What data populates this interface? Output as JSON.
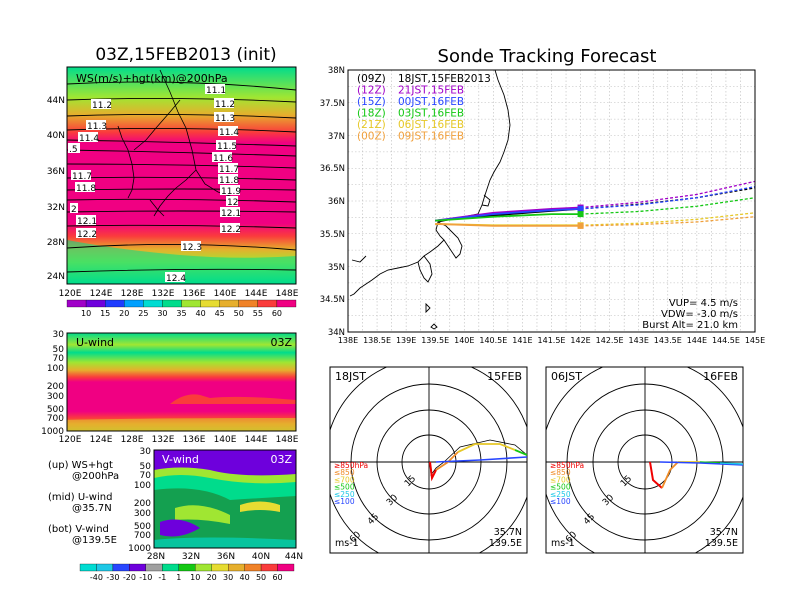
{
  "left_title": "03Z,15FEB2013 (init)",
  "right_title": "Sonde Tracking Forecast",
  "ws_panel": {
    "label": "WS(m/s)+hgt(km)@200hPa",
    "lat_ticks": [
      "44N",
      "40N",
      "36N",
      "32N",
      "28N",
      "24N"
    ],
    "lon_ticks": [
      "120E",
      "124E",
      "128E",
      "132E",
      "136E",
      "140E",
      "144E",
      "148E"
    ],
    "contour_labels": [
      "11.1",
      "11.2",
      "11.2",
      "11.3",
      "11.3",
      "11.4",
      "11.4",
      ".5",
      "11.5",
      "11.6",
      "11.7",
      "11.7",
      "11.8",
      "11.8",
      "11.9",
      "12",
      "2",
      "12.1",
      "12.1",
      "12.2",
      "12.2",
      "12.3",
      "12.4"
    ],
    "colorbar": [
      "10",
      "15",
      "20",
      "25",
      "30",
      "35",
      "40",
      "45",
      "50",
      "55",
      "60"
    ],
    "colors": [
      "#a000c8",
      "#6e00dc",
      "#1e3cff",
      "#00a0ff",
      "#00dcd2",
      "#00dc8c",
      "#a0e632",
      "#e6dc32",
      "#e6af2d",
      "#f08228",
      "#fa3c3c",
      "#f00082"
    ]
  },
  "u_panel": {
    "label": "U-wind",
    "time": "03Z",
    "p_ticks": [
      "30",
      "50",
      "70",
      "100",
      "200",
      "300",
      "500",
      "700",
      "1000"
    ],
    "lon_ticks": [
      "120E",
      "124E",
      "128E",
      "132E",
      "136E",
      "140E",
      "144E",
      "148E"
    ]
  },
  "v_panel": {
    "label": "V-wind",
    "time": "03Z",
    "p_ticks": [
      "30",
      "50",
      "70",
      "100",
      "200",
      "300",
      "500",
      "700",
      "1000"
    ],
    "lat_ticks": [
      "28N",
      "32N",
      "36N",
      "40N",
      "44N"
    ],
    "colorbar": [
      "-40",
      "-30",
      "-20",
      "-10",
      "-1",
      "1",
      "10",
      "20",
      "30",
      "40",
      "50",
      "60"
    ]
  },
  "legend_notes": {
    "up": "(up) WS+hgt",
    "up2": "@200hPa",
    "mid": "(mid) U-wind",
    "mid2": "@35.7N",
    "bot": "(bot) V-wind",
    "bot2": "@139.5E"
  },
  "track_map": {
    "lat_ticks": [
      "38N",
      "37.5N",
      "37N",
      "36.5N",
      "36N",
      "35.5N",
      "35N",
      "34.5N",
      "34N"
    ],
    "lon_ticks": [
      "138E",
      "138.5E",
      "139E",
      "139.5E",
      "140E",
      "140.5E",
      "141E",
      "141.5E",
      "142E",
      "142.5E",
      "143E",
      "143.5E",
      "144E",
      "144.5E",
      "145E"
    ],
    "runs": [
      {
        "run": "(09Z)",
        "label": "18JST,15FEB2013",
        "color": "#000000"
      },
      {
        "run": "(12Z)",
        "label": "21JST,15FEB",
        "color": "#a000c8"
      },
      {
        "run": "(15Z)",
        "label": "00JST,16FEB",
        "color": "#2846ff"
      },
      {
        "run": "(18Z)",
        "label": "03JST,16FEB",
        "color": "#14c814"
      },
      {
        "run": "(21Z)",
        "label": "06JST,16FEB",
        "color": "#e6c828"
      },
      {
        "run": "(00Z)",
        "label": "09JST,16FEB",
        "color": "#f0a03c"
      }
    ],
    "vup": "VUP= 4.5 m/s",
    "vdw": "VDW= -3.0 m/s",
    "burst": "Burst Alt= 21.0 km"
  },
  "hodo_left": {
    "time": "18JST",
    "date": "15FEB",
    "lat": "35.7N",
    "lon": "139.5E",
    "unit": "ms-1"
  },
  "hodo_right": {
    "time": "06JST",
    "date": "16FEB",
    "lat": "35.7N",
    "lon": "139.5E",
    "unit": "ms-1"
  },
  "hodo_ring_labels": [
    "15",
    "30",
    "45",
    "60"
  ],
  "hodo_legend": [
    {
      "label": "≥850hPa",
      "color": "#f00000"
    },
    {
      "label": "≤850",
      "color": "#f08c28"
    },
    {
      "label": "≤700",
      "color": "#e6c828"
    },
    {
      "label": "≤500",
      "color": "#14c814"
    },
    {
      "label": "≤250",
      "color": "#1ec8e6"
    },
    {
      "label": "≤100",
      "color": "#2846ff"
    }
  ],
  "chart_data": {
    "type": "line",
    "title": "Sonde Tracking Forecast",
    "xlabel": "",
    "ylabel": "",
    "xlim": [
      138,
      145
    ],
    "ylim": [
      34,
      38
    ],
    "series": [
      {
        "name": "(09Z) 18JST,15FEB2013",
        "x": [
          139.5,
          140.5,
          141.5,
          142.0,
          143.0,
          144.0,
          145.0
        ],
        "y": [
          35.7,
          35.78,
          35.85,
          35.88,
          35.95,
          36.05,
          36.2
        ]
      },
      {
        "name": "(12Z) 21JST,15FEB",
        "x": [
          139.5,
          140.5,
          141.5,
          142.0,
          143.0,
          144.0,
          145.0
        ],
        "y": [
          35.7,
          35.82,
          35.88,
          35.9,
          35.98,
          36.1,
          36.3
        ]
      },
      {
        "name": "(15Z) 00JST,16FEB",
        "x": [
          139.5,
          140.5,
          141.5,
          142.0,
          143.0,
          144.0,
          145.0
        ],
        "y": [
          35.7,
          35.8,
          35.86,
          35.88,
          35.94,
          36.05,
          36.22
        ]
      },
      {
        "name": "(18Z) 03JST,16FEB",
        "x": [
          139.5,
          140.5,
          141.5,
          142.0,
          143.0,
          144.0,
          145.0
        ],
        "y": [
          35.7,
          35.76,
          35.8,
          35.8,
          35.84,
          35.92,
          36.05
        ]
      },
      {
        "name": "(21Z) 06JST,16FEB",
        "x": [
          139.5,
          140.5,
          141.5,
          142.0,
          143.0,
          144.0,
          145.0
        ],
        "y": [
          35.65,
          35.63,
          35.63,
          35.63,
          35.66,
          35.72,
          35.82
        ]
      },
      {
        "name": "(00Z) 09JST,16FEB",
        "x": [
          139.5,
          140.5,
          141.5,
          142.0,
          143.0,
          144.0,
          145.0
        ],
        "y": [
          35.65,
          35.62,
          35.62,
          35.62,
          35.64,
          35.68,
          35.76
        ]
      }
    ]
  }
}
